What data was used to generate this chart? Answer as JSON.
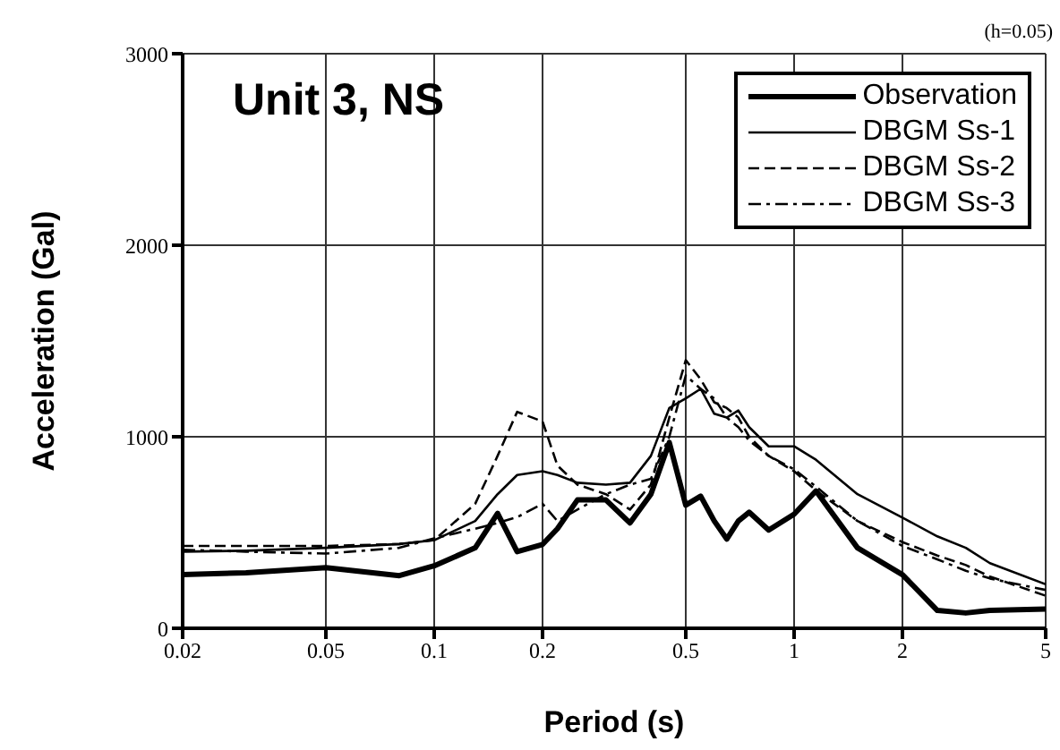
{
  "chart_data": {
    "type": "line",
    "title": "Unit 3, NS",
    "xlabel": "Period (s)",
    "ylabel": "Acceleration (Gal)",
    "annotations": [
      "(h=0.05)"
    ],
    "x": [
      0.02,
      0.03,
      0.05,
      0.08,
      0.1,
      0.13,
      0.15,
      0.17,
      0.2,
      0.22,
      0.25,
      0.3,
      0.35,
      0.4,
      0.45,
      0.5,
      0.55,
      0.6,
      0.65,
      0.7,
      0.75,
      0.85,
      1,
      1.15,
      1.5,
      2,
      2.5,
      3,
      3.5,
      5
    ],
    "series": [
      {
        "name": "Observation",
        "color": "#000000",
        "line_style": "solid",
        "values": [
          280,
          290,
          317,
          275,
          326,
          420,
          600,
          400,
          438,
          520,
          670,
          670,
          550,
          700,
          970,
          643,
          690,
          560,
          466,
          560,
          606,
          513,
          596,
          717,
          420,
          280,
          93,
          80,
          93,
          100
        ]
      },
      {
        "name": "DBGM Ss-1",
        "color": "#000000",
        "line_style": "solid",
        "values": [
          400,
          405,
          420,
          440,
          460,
          560,
          700,
          800,
          820,
          800,
          760,
          750,
          760,
          900,
          1150,
          1200,
          1250,
          1120,
          1100,
          1137,
          1050,
          950,
          950,
          880,
          700,
          578,
          480,
          420,
          340,
          230
        ]
      },
      {
        "name": "DBGM Ss-2",
        "color": "#000000",
        "line_style": "dashed",
        "values": [
          430,
          430,
          430,
          440,
          460,
          650,
          900,
          1130,
          1080,
          850,
          750,
          700,
          620,
          750,
          1100,
          1400,
          1300,
          1180,
          1150,
          1100,
          1000,
          900,
          820,
          720,
          560,
          450,
          380,
          330,
          270,
          170
        ]
      },
      {
        "name": "DBGM Ss-3",
        "color": "#000000",
        "line_style": "dashdot",
        "values": [
          410,
          400,
          390,
          420,
          470,
          520,
          550,
          580,
          650,
          560,
          620,
          700,
          750,
          780,
          1000,
          1320,
          1250,
          1200,
          1100,
          1050,
          980,
          900,
          830,
          740,
          560,
          430,
          360,
          300,
          260,
          200
        ]
      }
    ],
    "log": "x",
    "xlim": [
      0.02,
      5
    ],
    "xticks": [
      0.02,
      0.05,
      0.1,
      0.2,
      0.5,
      1,
      2,
      5
    ],
    "ylim": [
      0,
      3000
    ],
    "yticks": [
      0,
      1000,
      2000,
      3000
    ],
    "grid": true,
    "legend": "top right",
    "marker": "none"
  }
}
